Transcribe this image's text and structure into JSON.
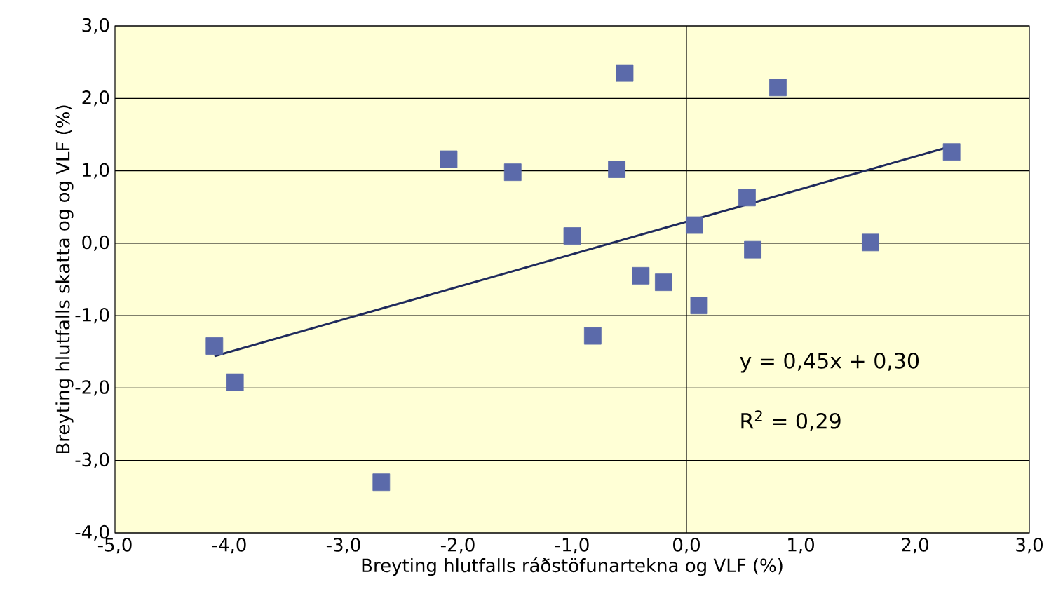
{
  "chart_data": {
    "type": "scatter",
    "xlabel": "Breyting hlutfalls ráðstöfunartekna og VLF (%)",
    "ylabel": "Breyting hlutfalls skatta og og VLF (%)",
    "annotations": [
      "y = 0,45x + 0,30",
      "R$^{2}$ = 0,29"
    ],
    "series": [
      {
        "color": "#5b6aaa",
        "marker": "square",
        "x": [
          -4.13,
          -3.95,
          -2.67,
          -2.08,
          -1.52,
          -1.0,
          -0.82,
          -0.61,
          -0.54,
          -0.4,
          -0.2,
          0.07,
          0.11,
          0.53,
          0.58,
          0.8,
          1.61,
          2.32
        ],
        "values": [
          -1.42,
          -1.92,
          -3.3,
          1.16,
          0.98,
          0.1,
          -1.28,
          1.02,
          2.35,
          -0.45,
          -0.54,
          0.25,
          -0.86,
          0.63,
          -0.09,
          2.15,
          0.01,
          1.26
        ]
      },
      {
        "type": "line",
        "color": "#1f2a5c",
        "x": [
          -4.13,
          2.32
        ],
        "values": [
          -1.56,
          1.34
        ]
      }
    ],
    "xlim": [
      -5,
      3
    ],
    "ylim": [
      -4,
      3
    ],
    "xticks": [
      {
        "value": -5,
        "label": "-5,0"
      },
      {
        "value": -4,
        "label": "-4,0"
      },
      {
        "value": -3,
        "label": "-3,0"
      },
      {
        "value": -2,
        "label": "-2,0"
      },
      {
        "value": -1,
        "label": "-1,0"
      },
      {
        "value": 0,
        "label": "0,0"
      },
      {
        "value": 1,
        "label": "1,0"
      },
      {
        "value": 2,
        "label": "2,0"
      },
      {
        "value": 3,
        "label": "3,0"
      }
    ],
    "yticks": [
      {
        "value": -4,
        "label": "-4,0"
      },
      {
        "value": -3,
        "label": "-3,0"
      },
      {
        "value": -2,
        "label": "-2,0"
      },
      {
        "value": -1,
        "label": "-1,0"
      },
      {
        "value": 0,
        "label": "0,0"
      },
      {
        "value": 1,
        "label": "1,0"
      },
      {
        "value": 2,
        "label": "2,0"
      },
      {
        "value": 3,
        "label": "3,0"
      }
    ],
    "ref_lines": [
      {
        "axis": "x",
        "value": 0
      }
    ],
    "grid": "y"
  }
}
